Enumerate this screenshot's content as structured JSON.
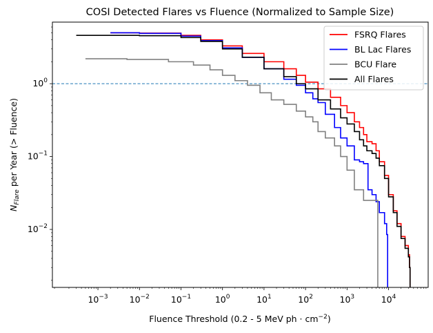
{
  "chart_data": {
    "type": "line",
    "title": "COSI Detected Flares vs Fluence (Normalized to Sample Size)",
    "xlabel": {
      "main": "Fluence Threshold (0.2 - 5 MeV  ph · cm",
      "sup": "−2",
      "end": ")"
    },
    "ylabel": {
      "main": "N",
      "sub": "Flare",
      "rest": " per Year (> Fluence)"
    },
    "x_scale": "log",
    "y_scale": "log",
    "xlim": [
      8e-05,
      90000
    ],
    "ylim": [
      0.0016,
      7
    ],
    "x_ticks": [
      {
        "value": 0.001,
        "mantissa": "10",
        "exp": "−3"
      },
      {
        "value": 0.01,
        "mantissa": "10",
        "exp": "−2"
      },
      {
        "value": 0.1,
        "mantissa": "10",
        "exp": "−1"
      },
      {
        "value": 1,
        "mantissa": "10",
        "exp": "0"
      },
      {
        "value": 10,
        "mantissa": "10",
        "exp": "1"
      },
      {
        "value": 100,
        "mantissa": "10",
        "exp": "2"
      },
      {
        "value": 1000,
        "mantissa": "10",
        "exp": "3"
      },
      {
        "value": 10000,
        "mantissa": "10",
        "exp": "4"
      }
    ],
    "y_ticks": [
      {
        "value": 0.01,
        "mantissa": "10",
        "exp": "−2"
      },
      {
        "value": 0.1,
        "mantissa": "10",
        "exp": "−1"
      },
      {
        "value": 1,
        "mantissa": "10",
        "exp": "0"
      }
    ],
    "reference_line": {
      "y": 1,
      "style": "dashed",
      "color": "#1f77b4"
    },
    "legend_position": "top-right",
    "series": [
      {
        "name": "FSRQ Flares",
        "color": "#ff0000",
        "x": [
          0.002,
          0.01,
          0.1,
          0.3,
          1,
          3,
          10,
          30,
          60,
          100,
          200,
          400,
          700,
          1000,
          1500,
          2000,
          2500,
          3000,
          4000,
          5000,
          6000,
          8000,
          10000,
          13000,
          16000,
          20000,
          25000,
          30000,
          32000,
          33000
        ],
        "y": [
          5.0,
          4.95,
          4.6,
          4.0,
          3.3,
          2.6,
          2.0,
          1.6,
          1.3,
          1.05,
          0.85,
          0.65,
          0.5,
          0.4,
          0.3,
          0.25,
          0.2,
          0.16,
          0.15,
          0.12,
          0.085,
          0.055,
          0.03,
          0.018,
          0.012,
          0.008,
          0.006,
          0.0045,
          0.003,
          0.0016
        ]
      },
      {
        "name": "BL Lac Flares",
        "color": "#0000ff",
        "x": [
          0.002,
          0.01,
          0.1,
          0.3,
          1,
          3,
          10,
          30,
          60,
          100,
          150,
          200,
          300,
          500,
          700,
          1000,
          1500,
          2000,
          2500,
          3000,
          3200,
          4000,
          5000,
          6000,
          8000,
          9000,
          9500,
          9500
        ],
        "y": [
          5.0,
          4.9,
          4.5,
          3.9,
          3.1,
          2.3,
          1.6,
          1.15,
          0.95,
          0.75,
          0.62,
          0.55,
          0.38,
          0.25,
          0.18,
          0.14,
          0.09,
          0.085,
          0.08,
          0.08,
          0.035,
          0.03,
          0.024,
          0.017,
          0.012,
          0.0085,
          0.0085,
          0.0016
        ]
      },
      {
        "name": "BCU Flare",
        "color": "#808080",
        "x": [
          0.0005,
          0.005,
          0.05,
          0.2,
          0.5,
          1,
          2,
          4,
          8,
          15,
          30,
          60,
          100,
          150,
          200,
          300,
          500,
          700,
          1000,
          1500,
          2500,
          5500,
          5500
        ],
        "y": [
          2.2,
          2.15,
          2.0,
          1.8,
          1.55,
          1.3,
          1.1,
          0.95,
          0.75,
          0.6,
          0.52,
          0.42,
          0.35,
          0.3,
          0.22,
          0.18,
          0.14,
          0.1,
          0.065,
          0.035,
          0.025,
          0.017,
          0.0016
        ]
      },
      {
        "name": "All Flares",
        "color": "#000000",
        "x": [
          0.0003,
          0.001,
          0.01,
          0.1,
          0.3,
          1,
          3,
          10,
          30,
          60,
          100,
          200,
          400,
          700,
          1000,
          1500,
          2000,
          2500,
          3000,
          4000,
          5000,
          6000,
          8000,
          10000,
          13000,
          16000,
          20000,
          25000,
          30000,
          32000,
          33000
        ],
        "y": [
          4.6,
          4.6,
          4.55,
          4.3,
          3.8,
          3.0,
          2.3,
          1.6,
          1.25,
          1.0,
          0.85,
          0.6,
          0.45,
          0.34,
          0.28,
          0.22,
          0.17,
          0.14,
          0.12,
          0.11,
          0.095,
          0.075,
          0.05,
          0.028,
          0.017,
          0.011,
          0.0075,
          0.0055,
          0.0042,
          0.003,
          0.0016
        ]
      }
    ]
  }
}
